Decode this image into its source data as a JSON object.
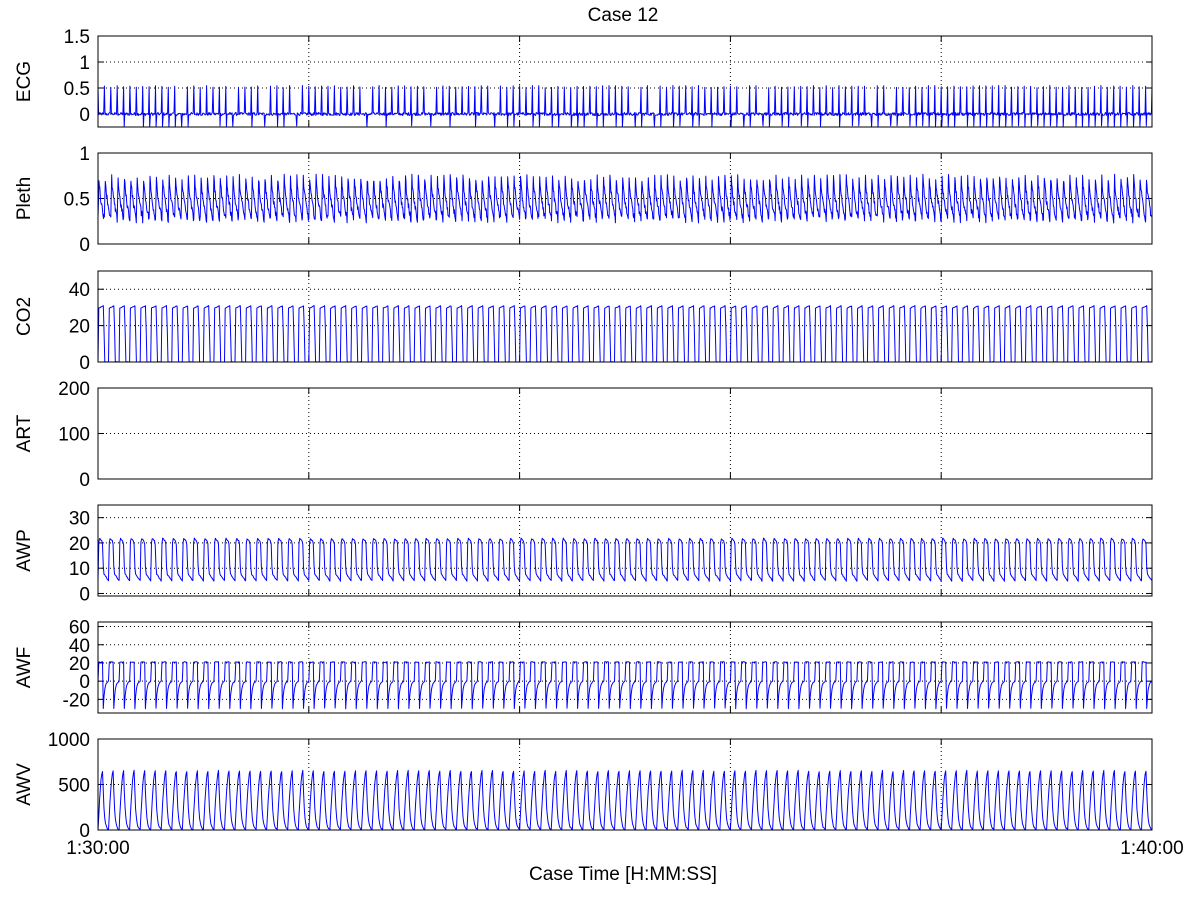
{
  "chart_data": {
    "type": "line",
    "title": "Case 12",
    "xlabel": "Case Time [H:MM:SS]",
    "x_tick_labels": [
      "1:30:00",
      "1:40:00"
    ],
    "x_range_seconds": [
      0,
      600
    ],
    "grid": true,
    "line_color": "#0000ff",
    "panels": [
      {
        "name": "ECG",
        "ylabel": "ECG",
        "ylim": [
          -0.25,
          1.5
        ],
        "yticks": [
          1.5,
          1,
          0.5,
          0
        ],
        "ytick_labels": [
          "1.5",
          "1",
          "0.5",
          "0"
        ],
        "signal": {
          "shape": "spikes",
          "cycles": 165,
          "baseline": 0.0,
          "peak": 0.55,
          "low": -0.25,
          "noise": 0.03
        }
      },
      {
        "name": "Pleth",
        "ylabel": "Pleth",
        "ylim": [
          0,
          1
        ],
        "yticks": [
          1,
          0.5,
          0
        ],
        "ytick_labels": [
          "1",
          "0.5",
          "0"
        ],
        "signal": {
          "shape": "pulse",
          "cycles": 165,
          "low": 0.27,
          "high": 0.75,
          "noise": 0.04
        }
      },
      {
        "name": "CO2",
        "ylabel": "CO2",
        "ylim": [
          0,
          50
        ],
        "yticks": [
          40,
          20,
          0
        ],
        "ytick_labels": [
          "40",
          "20",
          "0"
        ],
        "signal": {
          "shape": "square",
          "cycles": 100,
          "low": 0,
          "high": 31,
          "noise": 0.3
        }
      },
      {
        "name": "ART",
        "ylabel": "ART",
        "ylim": [
          0,
          200
        ],
        "yticks": [
          200,
          100,
          0
        ],
        "ytick_labels": [
          "200",
          "100",
          "0"
        ],
        "signal": null
      },
      {
        "name": "AWP",
        "ylabel": "AWP",
        "ylim": [
          -1,
          35
        ],
        "yticks": [
          30,
          20,
          10,
          0
        ],
        "ytick_labels": [
          "30",
          "20",
          "10",
          "0"
        ],
        "signal": {
          "shape": "breath",
          "cycles": 100,
          "low": 5,
          "high": 22,
          "noise": 0.4
        }
      },
      {
        "name": "AWF",
        "ylabel": "AWF",
        "ylim": [
          -35,
          65
        ],
        "yticks": [
          60,
          40,
          20,
          0,
          -20
        ],
        "ytick_labels": [
          "60",
          "40",
          "20",
          "0",
          "-20"
        ],
        "signal": {
          "shape": "flow",
          "cycles": 100,
          "low": -30,
          "high": 22,
          "noise": 0.8
        }
      },
      {
        "name": "AWV",
        "ylabel": "AWV",
        "ylim": [
          0,
          1000
        ],
        "yticks": [
          1000,
          500,
          0
        ],
        "ytick_labels": [
          "1000",
          "500",
          "0"
        ],
        "signal": {
          "shape": "volume",
          "cycles": 100,
          "low": 0,
          "high": 650,
          "noise": 15
        }
      }
    ]
  }
}
